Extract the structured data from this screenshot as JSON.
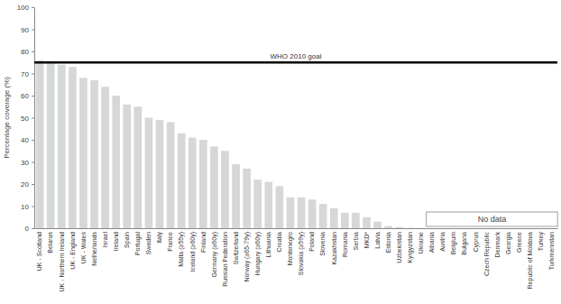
{
  "chart_data": {
    "type": "bar",
    "y_label": "Percentage coverage (%)",
    "categories": [
      "UK - Scotland",
      "Belarus",
      "UK - Northern Ireland",
      "UK - England",
      "UK - Wales",
      "Netherlands",
      "Israel",
      "Ireland",
      "Spain",
      "Portugal",
      "Sweden",
      "Italy",
      "France",
      "Malta (≥55y)",
      "Iceland (≥60y)",
      "Finland",
      "Germany (≥60y)",
      "Russian Federation",
      "Switzerland",
      "Norway (≥65-79y)",
      "Hungary (≥60y)",
      "Lithuania",
      "Croatia",
      "Montenegro",
      "Slovakia (≥59y)",
      "Poland",
      "Slovenia",
      "Kazakhstan",
      "Romania",
      "Serbia",
      "MKD*",
      "Latvia",
      "Estonia",
      "Uzbekistan",
      "Kyrgyzstan",
      "Ukraine",
      "Albania",
      "Austria",
      "Belgium",
      "Bulgaria",
      "Cyprus",
      "Czech Republic",
      "Denmark",
      "Georgia",
      "Greece",
      "Republic of Moldova",
      "Turkey",
      "Turkmenistan"
    ],
    "values": [
      76,
      75,
      74,
      73,
      68,
      67,
      64,
      60,
      56,
      55,
      50,
      49,
      48,
      43,
      41,
      40,
      37,
      35,
      29,
      27,
      22,
      21,
      19,
      14,
      14,
      13,
      11,
      9,
      7,
      7,
      5,
      3,
      1,
      0.5,
      0.2,
      0.1,
      null,
      null,
      null,
      null,
      null,
      null,
      null,
      null,
      null,
      null,
      null,
      null
    ],
    "color": "#d5d8d5",
    "ylim": [
      0,
      100
    ],
    "yticks": [
      0,
      10,
      20,
      30,
      40,
      50,
      60,
      70,
      80,
      90,
      100
    ],
    "grid": false,
    "goal_line": {
      "value": 75,
      "label": "WHO 2010 goal"
    },
    "no_data_label": "No data"
  }
}
